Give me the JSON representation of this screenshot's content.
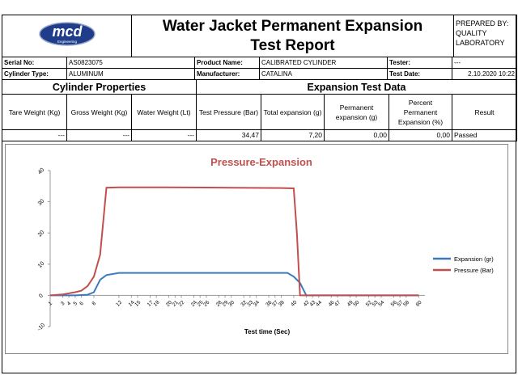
{
  "header": {
    "logo_text": "mcd",
    "logo_subtext": "Engineering",
    "title_line1": "Water Jacket Permanent Expansion",
    "title_line2": "Test Report",
    "prepared_label": "PREPARED BY:",
    "prepared_value_1": "QUALITY",
    "prepared_value_2": "LABORATORY"
  },
  "info": {
    "serial_label": "Serial No:",
    "serial_value": "AS0823075",
    "product_label": "Product Name:",
    "product_value": "CALIBRATED CYLINDER",
    "tester_label": "Tester:",
    "tester_value": "---",
    "type_label": "Cylinder Type:",
    "type_value": "ALUMINUM",
    "manufacturer_label": "Manufacturer:",
    "manufacturer_value": "CATALINA",
    "date_label": "Test Date:",
    "date_value": "2.10.2020 10:22"
  },
  "sections": {
    "cylinder": "Cylinder Properties",
    "expansion": "Expansion Test Data"
  },
  "columns": [
    "Tare Weight (Kg)",
    "Gross Weight (Kg)",
    "Water Weight (Lt)",
    "Test Pressure (Bar)",
    "Total expansion (g)",
    "Permanent expansion (g)",
    "Percent Permanent Expansion (%)",
    "Result"
  ],
  "values": [
    "---",
    "---",
    "---",
    "34,47",
    "7,20",
    "0,00",
    "0,00",
    "Passed"
  ],
  "chart_data": {
    "type": "line",
    "title": "Pressure-Expansion",
    "xlabel": "Test time (Sec)",
    "ylabel": "",
    "ylim": [
      -10,
      40
    ],
    "yticks": [
      -10,
      0,
      10,
      20,
      30,
      40
    ],
    "xticks": [
      1,
      3,
      4,
      5,
      6,
      8,
      12,
      14,
      15,
      17,
      18,
      20,
      21,
      22,
      24,
      25,
      26,
      28,
      29,
      30,
      32,
      33,
      34,
      36,
      37,
      38,
      40,
      42,
      43,
      44,
      46,
      47,
      49,
      50,
      52,
      53,
      54,
      56,
      57,
      58,
      60
    ],
    "grid": false,
    "legend_position": "right",
    "colors": {
      "expansion": "#3a7abf",
      "pressure": "#c0504d"
    },
    "series": [
      {
        "name": "Expansion (gr)",
        "color": "#3a7abf",
        "points": [
          [
            1,
            0
          ],
          [
            3,
            0
          ],
          [
            5,
            0
          ],
          [
            7,
            0.2
          ],
          [
            8,
            1
          ],
          [
            9,
            5
          ],
          [
            10,
            6.5
          ],
          [
            12,
            7.2
          ],
          [
            20,
            7.2
          ],
          [
            30,
            7.2
          ],
          [
            38,
            7.2
          ],
          [
            39,
            7.2
          ],
          [
            40,
            6
          ],
          [
            41,
            4
          ],
          [
            42,
            0
          ],
          [
            45,
            0
          ],
          [
            60,
            0
          ]
        ]
      },
      {
        "name": "Pressure (Bar)",
        "color": "#c0504d",
        "points": [
          [
            1,
            0
          ],
          [
            3,
            0.3
          ],
          [
            5,
            1
          ],
          [
            6,
            1.5
          ],
          [
            7,
            3
          ],
          [
            8,
            6
          ],
          [
            9,
            13
          ],
          [
            10,
            34.5
          ],
          [
            12,
            34.6
          ],
          [
            20,
            34.6
          ],
          [
            30,
            34.5
          ],
          [
            38,
            34.4
          ],
          [
            40,
            34.3
          ],
          [
            40.5,
            20
          ],
          [
            41,
            0
          ],
          [
            42,
            0
          ],
          [
            45,
            0
          ],
          [
            60,
            0
          ]
        ]
      }
    ]
  }
}
